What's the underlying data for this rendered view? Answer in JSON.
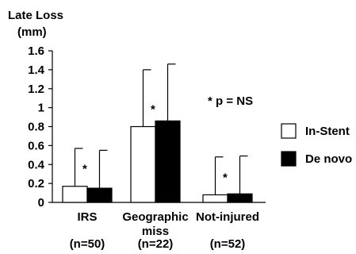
{
  "chart_data": {
    "type": "bar",
    "ylabel_lines": [
      "Late Loss",
      "(mm)"
    ],
    "ylim": [
      0,
      1.6
    ],
    "yticks": [
      "0",
      "0.2",
      "0.4",
      "0.6",
      "0.8",
      "1",
      "1.2",
      "1.4",
      "1.6"
    ],
    "categories": [
      {
        "label_lines": [
          "IRS"
        ],
        "n_label": "(n=50)"
      },
      {
        "label_lines": [
          "Geographic",
          "miss"
        ],
        "n_label": "(n=22)"
      },
      {
        "label_lines": [
          "Not-injured"
        ],
        "n_label": "(n=52)"
      }
    ],
    "series": [
      {
        "name": "In-Stent",
        "color": "#ffffff",
        "values": [
          0.17,
          0.8,
          0.08
        ],
        "errors": [
          0.4,
          0.6,
          0.4
        ]
      },
      {
        "name": "De novo",
        "color": "#000000",
        "values": [
          0.15,
          0.86,
          0.09
        ],
        "errors": [
          0.4,
          0.6,
          0.4
        ]
      }
    ],
    "markers": [
      "*",
      "*",
      "*"
    ],
    "annotation": "* p = NS",
    "grid": false,
    "legend_position": "right"
  }
}
